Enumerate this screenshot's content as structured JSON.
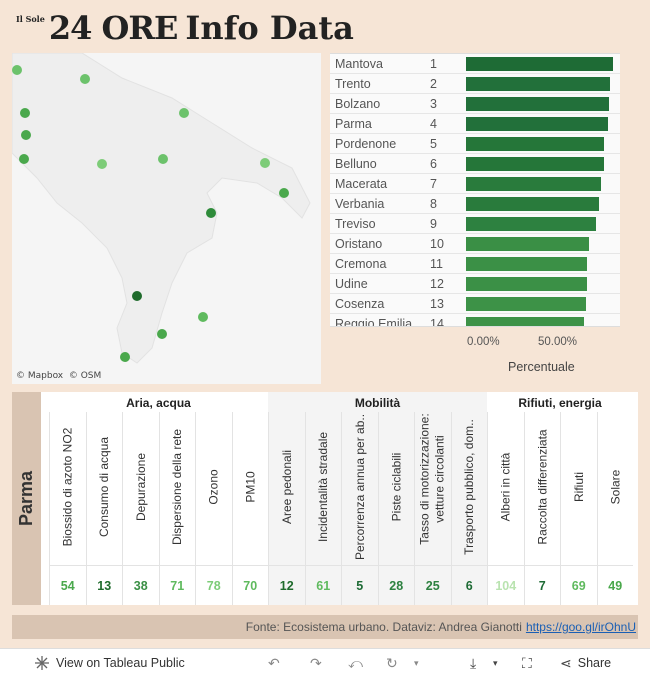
{
  "logo": {
    "small": "Il Sole",
    "brand": "24 ORE",
    "title": "Info Data"
  },
  "map": {
    "attribution_mapbox": "© Mapbox",
    "attribution_osm": "© OSM",
    "points": [
      {
        "shade": "#6cc26b"
      },
      {
        "shade": "#6cc26b"
      },
      {
        "shade": "#4aa84c"
      },
      {
        "shade": "#4aa84c"
      },
      {
        "shade": "#4aa84c"
      },
      {
        "shade": "#7dcc78"
      },
      {
        "shade": "#6cc26b"
      },
      {
        "shade": "#2e8b3a"
      },
      {
        "shade": "#7dcc78"
      },
      {
        "shade": "#4aa84c"
      },
      {
        "shade": "#1f6b2c"
      },
      {
        "shade": "#5fba5e"
      },
      {
        "shade": "#4aa84c"
      },
      {
        "shade": "#4aa84c"
      },
      {
        "shade": "#6cc26b"
      }
    ]
  },
  "ranking": {
    "rows": [
      {
        "city": "Mantova",
        "rank": "1",
        "value": 0.99,
        "color": "#1e6b35"
      },
      {
        "city": "Trento",
        "rank": "2",
        "value": 0.97,
        "color": "#22703a"
      },
      {
        "city": "Bolzano",
        "rank": "3",
        "value": 0.965,
        "color": "#22703a"
      },
      {
        "city": "Parma",
        "rank": "4",
        "value": 0.96,
        "color": "#22703a"
      },
      {
        "city": "Pordenone",
        "rank": "5",
        "value": 0.93,
        "color": "#257639"
      },
      {
        "city": "Belluno",
        "rank": "6",
        "value": 0.93,
        "color": "#257639"
      },
      {
        "city": "Macerata",
        "rank": "7",
        "value": 0.91,
        "color": "#297b3c"
      },
      {
        "city": "Verbania",
        "rank": "8",
        "value": 0.9,
        "color": "#297b3c"
      },
      {
        "city": "Treviso",
        "rank": "9",
        "value": 0.88,
        "color": "#2d8140"
      },
      {
        "city": "Oristano",
        "rank": "10",
        "value": 0.83,
        "color": "#3a8f45"
      },
      {
        "city": "Cremona",
        "rank": "11",
        "value": 0.82,
        "color": "#3b9046"
      },
      {
        "city": "Udine",
        "rank": "12",
        "value": 0.82,
        "color": "#3b9046"
      },
      {
        "city": "Cosenza",
        "rank": "13",
        "value": 0.81,
        "color": "#3d9247"
      },
      {
        "city": "Reggio Emilia",
        "rank": "14",
        "value": 0.8,
        "color": "#3d9247"
      }
    ],
    "axis": {
      "tick0": "0.00%",
      "tick1": "50.00%",
      "title": "Percentuale"
    }
  },
  "table": {
    "city": "Parma",
    "groups": [
      {
        "label": "Aria, acqua"
      },
      {
        "label": "Mobilità"
      },
      {
        "label": "Rifiuti, energia"
      }
    ],
    "columns": [
      {
        "label": "Biossido di azoto NO2",
        "value": "54",
        "color": "#4aa84c"
      },
      {
        "label": "Consumo di acqua",
        "value": "13",
        "color": "#1f6b2c"
      },
      {
        "label": "Depurazione",
        "value": "38",
        "color": "#3a8f45"
      },
      {
        "label": "Dispersione della rete",
        "value": "71",
        "color": "#5fba5e"
      },
      {
        "label": "Ozono",
        "value": "78",
        "color": "#7dcc78"
      },
      {
        "label": "PM10",
        "value": "70",
        "color": "#5fba5e"
      },
      {
        "label": "Aree pedonali",
        "value": "12",
        "color": "#1f6b2c"
      },
      {
        "label": "Incidentalità stradale",
        "value": "61",
        "color": "#5fba5e"
      },
      {
        "label": "Percorrenza annua per ab..",
        "value": "5",
        "color": "#1e6b35"
      },
      {
        "label": "Piste ciclabili",
        "value": "28",
        "color": "#2d8140"
      },
      {
        "label": "Tasso di motorizzazione: vetture circolanti",
        "value": "25",
        "color": "#2d8140"
      },
      {
        "label": "Trasporto pubblico, dom..",
        "value": "6",
        "color": "#1e6b35"
      },
      {
        "label": "Alberi in città",
        "value": "104",
        "color": "#b9e3b0"
      },
      {
        "label": "Raccolta differenziata",
        "value": "7",
        "color": "#1e6b35"
      },
      {
        "label": "Rifiuti",
        "value": "69",
        "color": "#5fba5e"
      },
      {
        "label": "Solare",
        "value": "49",
        "color": "#4aa84c"
      }
    ]
  },
  "footer": {
    "source": "Fonte: Ecosistema urbano. Dataviz: Andrea Gianotti",
    "link": "https://goo.gl/irOhnU"
  },
  "toolbar": {
    "view_label": "View on Tableau Public",
    "share_label": "Share"
  }
}
